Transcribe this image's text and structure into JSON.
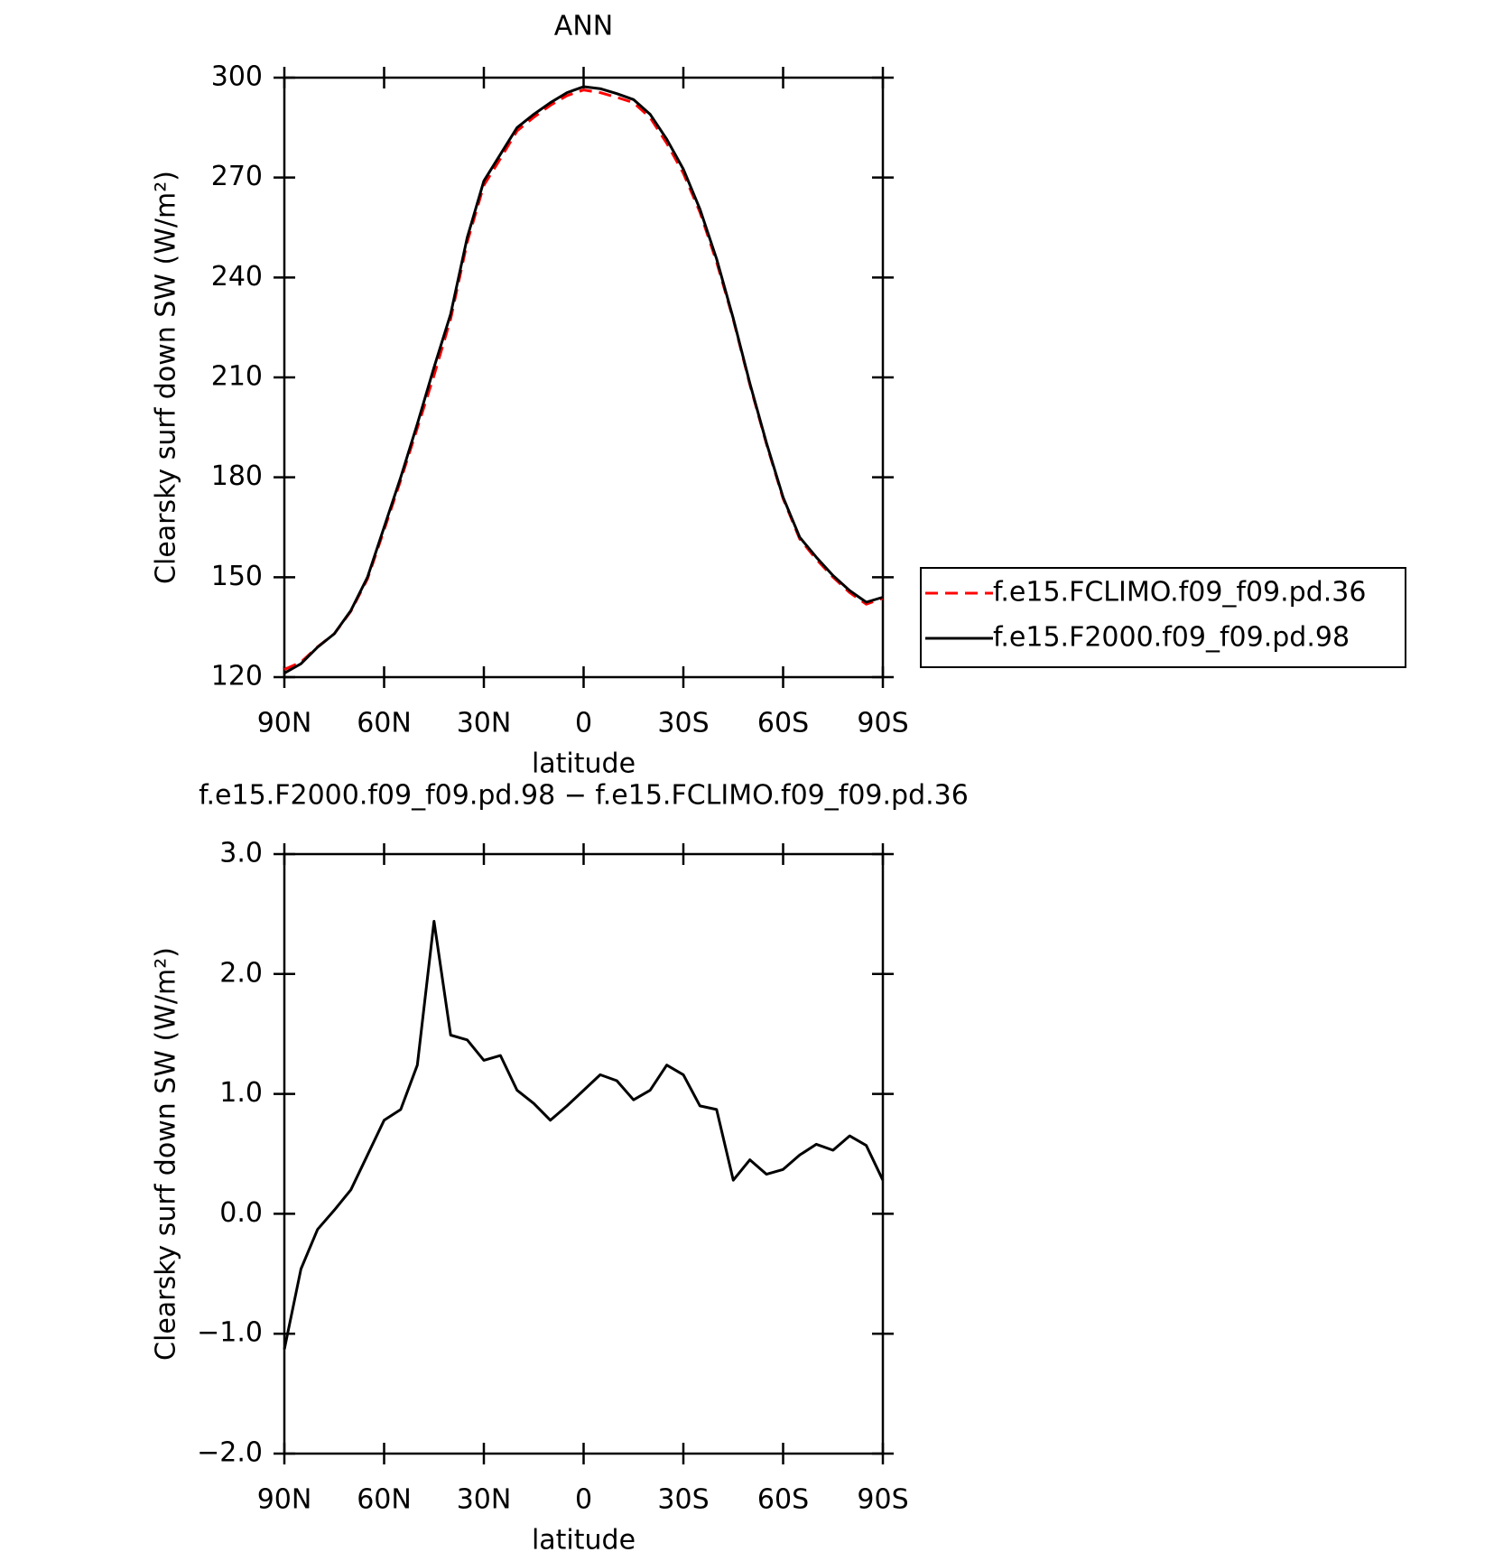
{
  "chart_data": [
    {
      "type": "line",
      "title": "ANN",
      "xlabel": "latitude",
      "ylabel": "Clearsky surf down SW (W/m²)",
      "x": [
        90,
        85,
        80,
        75,
        70,
        65,
        60,
        55,
        50,
        45,
        40,
        35,
        30,
        25,
        20,
        15,
        10,
        5,
        0,
        -5,
        -10,
        -15,
        -20,
        -25,
        -30,
        -35,
        -40,
        -45,
        -50,
        -55,
        -60,
        -65,
        -70,
        -75,
        -80,
        -85,
        -90
      ],
      "series": [
        {
          "name": "f.e15.FCLIMO.f09_f09.pd.36",
          "color": "#ff0000",
          "dash": true,
          "values": [
            122.3,
            124.5,
            129.1,
            133,
            139.8,
            149.5,
            164.2,
            179.1,
            194.8,
            210.6,
            227.5,
            250.6,
            267.7,
            275.7,
            284,
            288.1,
            291.7,
            294.6,
            296.3,
            295.5,
            294.1,
            292.5,
            288,
            280.3,
            271.3,
            259.6,
            244.7,
            227.4,
            207.8,
            190,
            173.6,
            161.5,
            155.4,
            150,
            145.4,
            141.9,
            143.7
          ]
        },
        {
          "name": "f.e15.F2000.f09_f09.pd.98",
          "color": "#000000",
          "dash": false,
          "values": [
            121.2,
            124,
            129,
            133,
            140,
            150,
            165,
            180,
            196,
            213,
            229,
            252,
            269,
            277,
            285,
            289,
            292.5,
            295.5,
            297.3,
            296.7,
            295.2,
            293.4,
            289,
            281.5,
            272.5,
            260.5,
            245.6,
            227.7,
            208.2,
            190.3,
            174,
            162,
            156,
            150.5,
            146,
            142.5,
            144
          ]
        }
      ],
      "xlim": [
        90,
        -90
      ],
      "xticks": [
        {
          "value": 90,
          "label": "90N"
        },
        {
          "value": 60,
          "label": "60N"
        },
        {
          "value": 30,
          "label": "30N"
        },
        0,
        {
          "value": -30,
          "label": "30S"
        },
        {
          "value": -60,
          "label": "60S"
        },
        {
          "value": -90,
          "label": "90S"
        }
      ],
      "ylim": [
        120,
        300
      ],
      "yticks": [
        120,
        150,
        180,
        210,
        240,
        270,
        300
      ],
      "legend": "right"
    },
    {
      "type": "line",
      "title": "f.e15.F2000.f09_f09.pd.98 − f.e15.FCLIMO.f09_f09.pd.36",
      "xlabel": "latitude",
      "ylabel": "Clearsky surf down SW (W/m²)",
      "x": [
        90,
        85,
        80,
        75,
        70,
        65,
        60,
        55,
        50,
        45,
        40,
        35,
        30,
        25,
        20,
        15,
        10,
        5,
        0,
        -5,
        -10,
        -15,
        -20,
        -25,
        -30,
        -35,
        -40,
        -45,
        -50,
        -55,
        -60,
        -65,
        -70,
        -75,
        -80,
        -85,
        -90
      ],
      "values": [
        -1.13,
        -0.46,
        -0.13,
        0.03,
        0.2,
        0.49,
        0.78,
        0.87,
        1.24,
        2.44,
        1.49,
        1.45,
        1.28,
        1.32,
        1.03,
        0.92,
        0.78,
        0.9,
        1.03,
        1.16,
        1.11,
        0.95,
        1.03,
        1.24,
        1.16,
        0.9,
        0.87,
        0.28,
        0.45,
        0.33,
        0.37,
        0.49,
        0.58,
        0.53,
        0.65,
        0.57,
        0.28
      ],
      "color": "#000000",
      "xlim": [
        90,
        -90
      ],
      "xticks": [
        {
          "value": 90,
          "label": "90N"
        },
        {
          "value": 60,
          "label": "60N"
        },
        {
          "value": 30,
          "label": "30N"
        },
        0,
        {
          "value": -30,
          "label": "30S"
        },
        {
          "value": -60,
          "label": "60S"
        },
        {
          "value": -90,
          "label": "90S"
        }
      ],
      "ylim": [
        -2,
        3
      ],
      "yticks": [
        {
          "value": -2,
          "label": "−2.0"
        },
        {
          "value": -1,
          "label": "−1.0"
        },
        {
          "value": 0,
          "label": "0.0"
        },
        {
          "value": 1,
          "label": "1.0"
        },
        {
          "value": 2,
          "label": "2.0"
        },
        {
          "value": 3,
          "label": "3.0"
        }
      ]
    }
  ]
}
